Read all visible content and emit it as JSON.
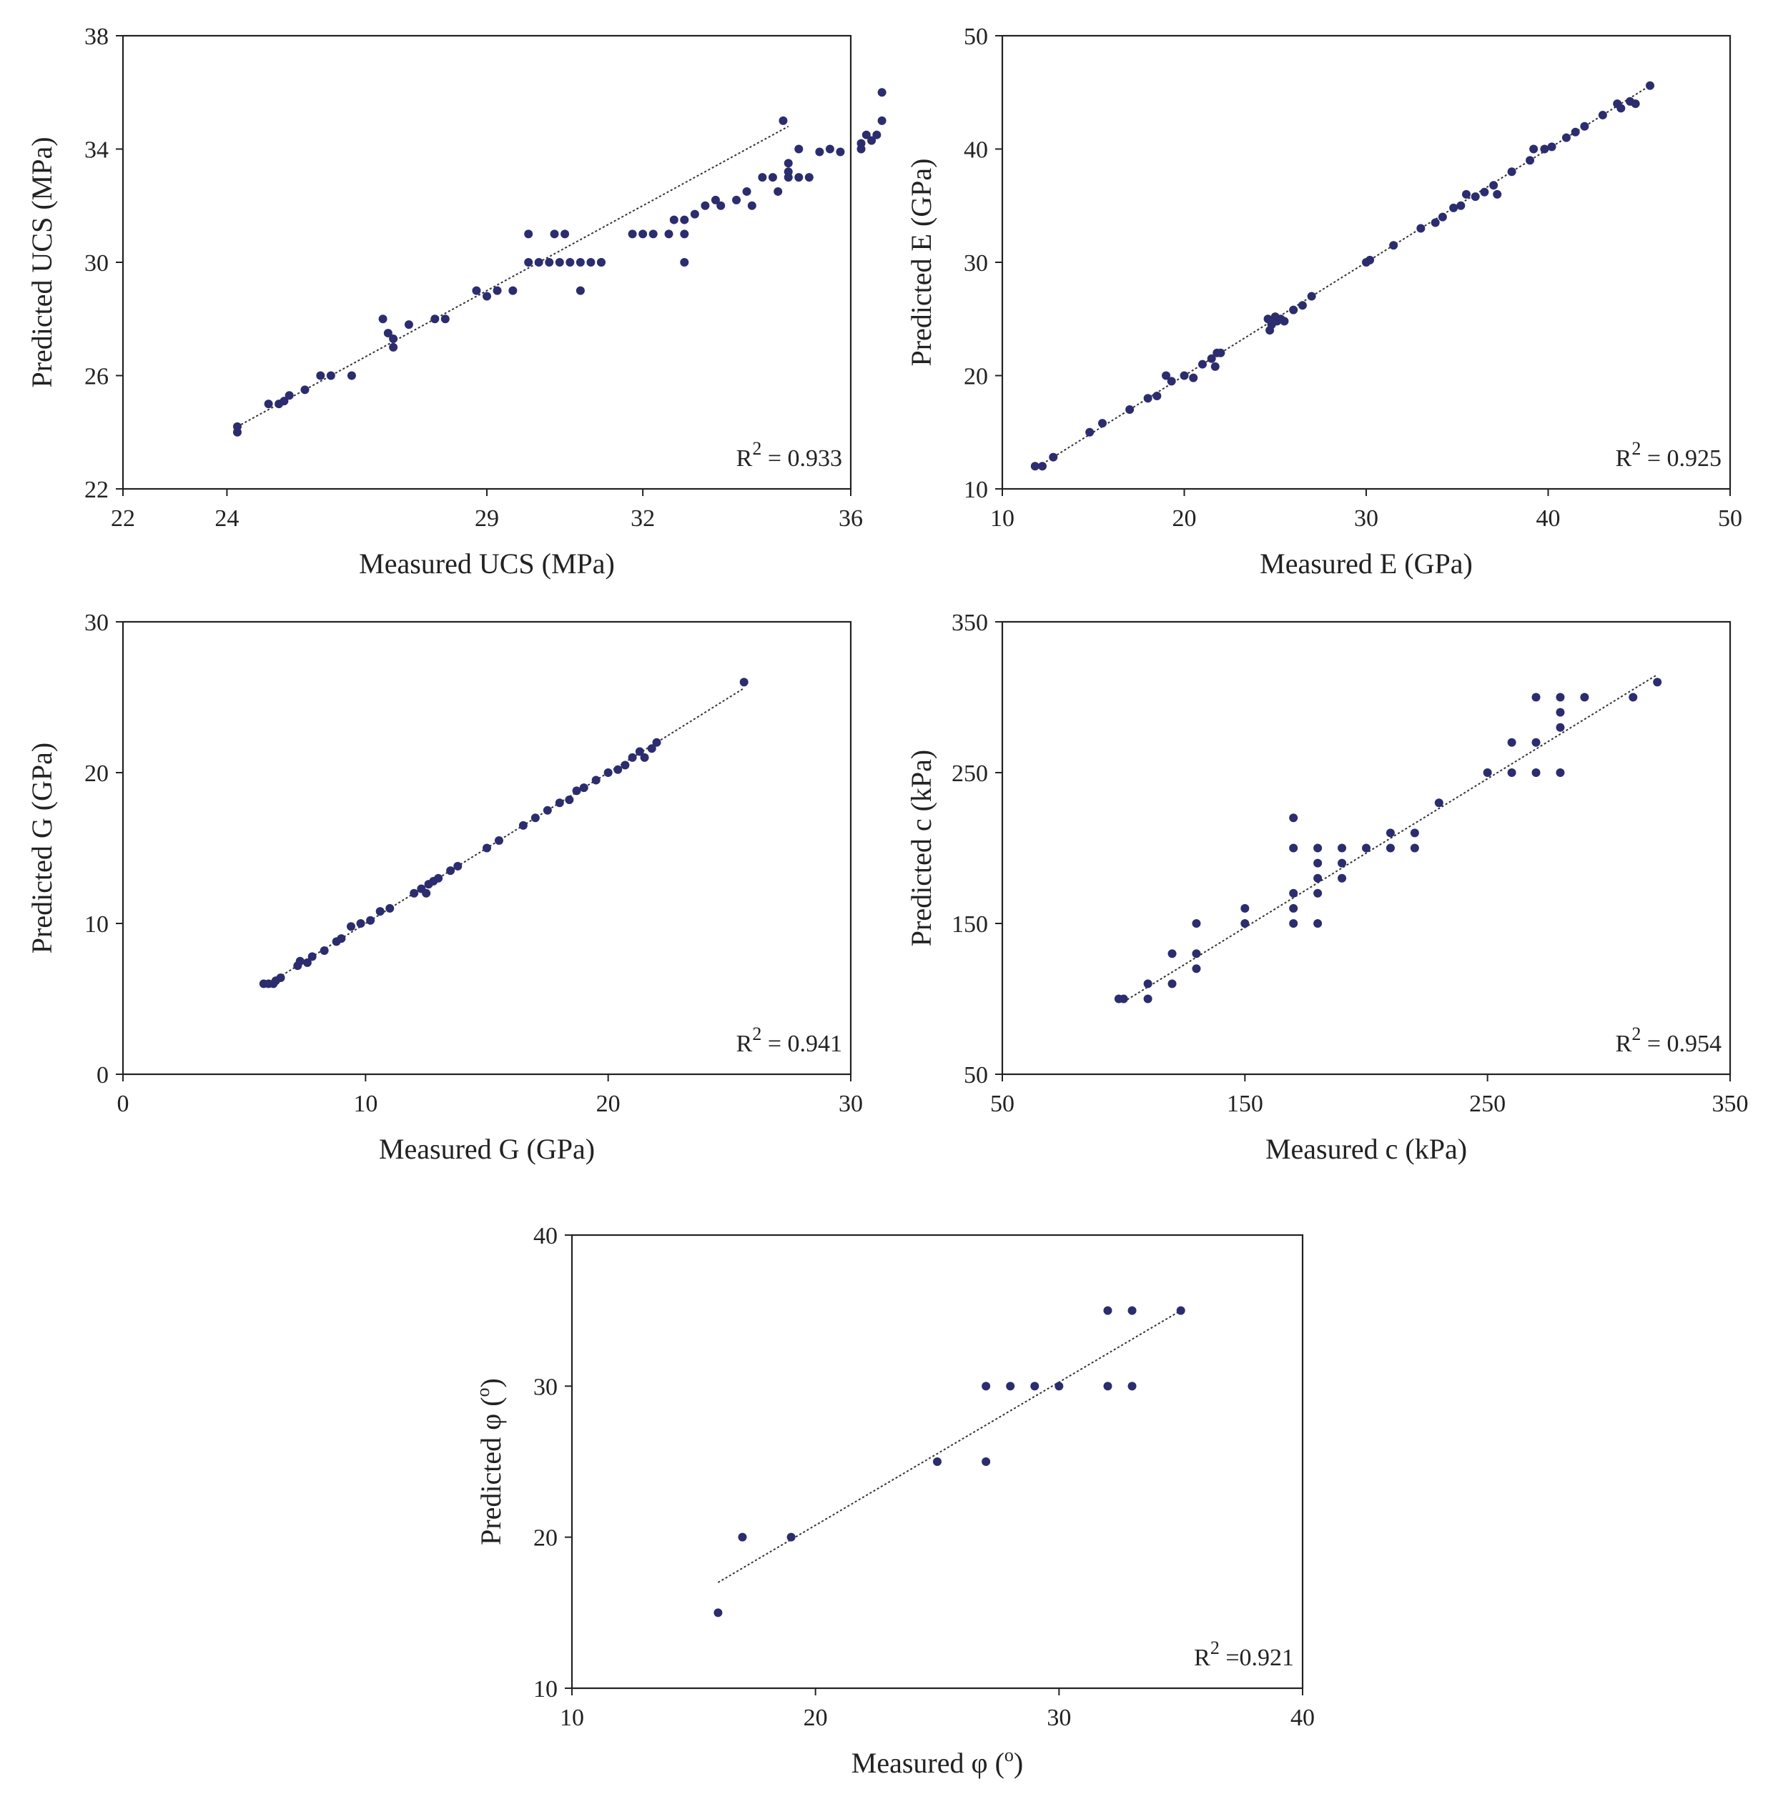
{
  "figure": {
    "title": ""
  },
  "style": {
    "marker_color": "#2b2d6e",
    "line_color": "#333333",
    "axis_color": "#222222"
  },
  "chart_data": [
    {
      "type": "scatter",
      "title": "",
      "xlabel": "Measured UCS (MPa)",
      "ylabel": "Predicted UCS (MPa)",
      "xlim": [
        22,
        36
      ],
      "ylim": [
        22,
        38
      ],
      "xticks": [
        22,
        24,
        29,
        32,
        36
      ],
      "yticks": [
        22,
        26,
        30,
        34,
        38
      ],
      "annotation": {
        "prefix": "R",
        "sup": "2",
        "text": " = 0.933"
      },
      "trendline": {
        "x": [
          24.2,
          34.8
        ],
        "y": [
          24.2,
          34.8
        ]
      },
      "points": [
        [
          24.2,
          24.0
        ],
        [
          24.2,
          24.2
        ],
        [
          24.8,
          25.0
        ],
        [
          25.0,
          25.0
        ],
        [
          25.1,
          25.1
        ],
        [
          25.2,
          25.3
        ],
        [
          25.5,
          25.5
        ],
        [
          25.8,
          26.0
        ],
        [
          26.0,
          26.0
        ],
        [
          26.4,
          26.0
        ],
        [
          27.0,
          28.0
        ],
        [
          27.1,
          27.5
        ],
        [
          27.2,
          27.3
        ],
        [
          27.2,
          27.0
        ],
        [
          27.5,
          27.8
        ],
        [
          28.0,
          28.0
        ],
        [
          28.2,
          28.0
        ],
        [
          28.8,
          29.0
        ],
        [
          29.0,
          28.8
        ],
        [
          29.2,
          29.0
        ],
        [
          29.5,
          29.0
        ],
        [
          29.8,
          31.0
        ],
        [
          29.8,
          30.0
        ],
        [
          30.0,
          30.0
        ],
        [
          30.3,
          31.0
        ],
        [
          30.5,
          31.0
        ],
        [
          30.2,
          30.0
        ],
        [
          30.4,
          30.0
        ],
        [
          30.6,
          30.0
        ],
        [
          30.8,
          29.0
        ],
        [
          30.8,
          30.0
        ],
        [
          31.0,
          30.0
        ],
        [
          31.2,
          30.0
        ],
        [
          31.2,
          30.0
        ],
        [
          31.8,
          31.0
        ],
        [
          32.0,
          31.0
        ],
        [
          32.2,
          31.0
        ],
        [
          32.5,
          31.0
        ],
        [
          32.6,
          31.5
        ],
        [
          32.8,
          31.0
        ],
        [
          32.8,
          30.0
        ],
        [
          32.8,
          31.5
        ],
        [
          33.0,
          31.7
        ],
        [
          33.2,
          32.0
        ],
        [
          33.4,
          32.2
        ],
        [
          33.5,
          32.0
        ],
        [
          33.8,
          32.2
        ],
        [
          34.0,
          32.5
        ],
        [
          34.1,
          32.0
        ],
        [
          34.3,
          33.0
        ],
        [
          34.5,
          33.0
        ],
        [
          34.6,
          32.5
        ],
        [
          34.8,
          33.2
        ],
        [
          35.0,
          33.0
        ],
        [
          34.7,
          35.0
        ],
        [
          34.8,
          33.5
        ],
        [
          35.0,
          34.0
        ],
        [
          34.8,
          33.0
        ],
        [
          35.2,
          33.0
        ],
        [
          35.4,
          33.9
        ],
        [
          35.6,
          34.0
        ],
        [
          35.8,
          33.9
        ],
        [
          36.2,
          34.2
        ],
        [
          36.3,
          34.5
        ],
        [
          36.5,
          34.5
        ],
        [
          36.6,
          35.0
        ],
        [
          36.6,
          36.0
        ],
        [
          36.4,
          34.3
        ],
        [
          36.2,
          34.0
        ]
      ]
    },
    {
      "type": "scatter",
      "title": "",
      "xlabel": "Measured E (GPa)",
      "ylabel": "Predicted E (GPa)",
      "xlim": [
        10,
        50
      ],
      "ylim": [
        10,
        50
      ],
      "xticks": [
        10,
        20,
        30,
        40,
        50
      ],
      "yticks": [
        10,
        20,
        30,
        40,
        50
      ],
      "annotation": {
        "prefix": "R",
        "sup": "2",
        "text": " = 0.925"
      },
      "trendline": {
        "x": [
          11.8,
          45.6
        ],
        "y": [
          11.8,
          45.6
        ]
      },
      "points": [
        [
          11.8,
          12.0
        ],
        [
          12.2,
          12.0
        ],
        [
          12.8,
          12.8
        ],
        [
          14.8,
          15.0
        ],
        [
          15.5,
          15.8
        ],
        [
          17.0,
          17.0
        ],
        [
          18.0,
          18.0
        ],
        [
          18.5,
          18.2
        ],
        [
          19.0,
          20.0
        ],
        [
          19.3,
          19.5
        ],
        [
          20.0,
          20.0
        ],
        [
          20.5,
          19.8
        ],
        [
          21.0,
          21.0
        ],
        [
          21.5,
          21.5
        ],
        [
          21.8,
          22.0
        ],
        [
          22.0,
          22.0
        ],
        [
          21.7,
          20.8
        ],
        [
          24.6,
          25.0
        ],
        [
          24.8,
          24.5
        ],
        [
          25.0,
          25.2
        ],
        [
          25.1,
          24.8
        ],
        [
          25.3,
          25.0
        ],
        [
          24.7,
          24.0
        ],
        [
          25.5,
          24.8
        ],
        [
          26.0,
          25.8
        ],
        [
          26.5,
          26.2
        ],
        [
          27.0,
          27.0
        ],
        [
          30.0,
          30.0
        ],
        [
          30.2,
          30.2
        ],
        [
          31.5,
          31.5
        ],
        [
          33.0,
          33.0
        ],
        [
          33.8,
          33.5
        ],
        [
          34.2,
          34.0
        ],
        [
          34.8,
          34.8
        ],
        [
          35.2,
          35.0
        ],
        [
          35.5,
          36.0
        ],
        [
          36.0,
          35.8
        ],
        [
          36.5,
          36.2
        ],
        [
          37.0,
          36.8
        ],
        [
          37.2,
          36.0
        ],
        [
          38.0,
          38.0
        ],
        [
          39.0,
          39.0
        ],
        [
          39.2,
          40.0
        ],
        [
          39.8,
          40.0
        ],
        [
          40.2,
          40.2
        ],
        [
          41.0,
          41.0
        ],
        [
          41.5,
          41.5
        ],
        [
          42.0,
          42.0
        ],
        [
          43.0,
          43.0
        ],
        [
          43.8,
          44.0
        ],
        [
          44.0,
          43.6
        ],
        [
          44.5,
          44.2
        ],
        [
          44.8,
          44.0
        ],
        [
          45.6,
          45.6
        ]
      ]
    },
    {
      "type": "scatter",
      "title": "",
      "xlabel": "Measured G (GPa)",
      "ylabel": "Predicted G (GPa)",
      "xlim": [
        0,
        30
      ],
      "ylim": [
        0,
        30
      ],
      "xticks": [
        0,
        10,
        20,
        30
      ],
      "yticks": [
        0,
        10,
        20,
        30
      ],
      "annotation": {
        "prefix": "R",
        "sup": "2",
        "text": " = 0.941"
      },
      "trendline": {
        "x": [
          5.8,
          25.6
        ],
        "y": [
          5.8,
          25.6
        ]
      },
      "points": [
        [
          5.8,
          6.0
        ],
        [
          6.0,
          6.0
        ],
        [
          6.2,
          6.0
        ],
        [
          6.3,
          6.2
        ],
        [
          6.5,
          6.4
        ],
        [
          7.2,
          7.2
        ],
        [
          7.3,
          7.5
        ],
        [
          7.6,
          7.4
        ],
        [
          7.8,
          7.8
        ],
        [
          8.3,
          8.2
        ],
        [
          8.8,
          8.8
        ],
        [
          9.0,
          9.0
        ],
        [
          9.4,
          9.8
        ],
        [
          9.8,
          10.0
        ],
        [
          10.2,
          10.2
        ],
        [
          10.6,
          10.8
        ],
        [
          11.0,
          11.0
        ],
        [
          12.0,
          12.0
        ],
        [
          12.3,
          12.3
        ],
        [
          12.5,
          12.0
        ],
        [
          12.6,
          12.6
        ],
        [
          12.8,
          12.8
        ],
        [
          13.0,
          13.0
        ],
        [
          13.5,
          13.5
        ],
        [
          13.8,
          13.8
        ],
        [
          15.0,
          15.0
        ],
        [
          15.5,
          15.5
        ],
        [
          16.5,
          16.5
        ],
        [
          17.0,
          17.0
        ],
        [
          17.5,
          17.5
        ],
        [
          18.0,
          18.0
        ],
        [
          18.4,
          18.2
        ],
        [
          18.7,
          18.8
        ],
        [
          19.0,
          19.0
        ],
        [
          19.5,
          19.5
        ],
        [
          20.0,
          20.0
        ],
        [
          20.4,
          20.2
        ],
        [
          20.7,
          20.5
        ],
        [
          21.0,
          21.0
        ],
        [
          21.3,
          21.4
        ],
        [
          21.5,
          21.0
        ],
        [
          21.8,
          21.6
        ],
        [
          22.0,
          22.0
        ],
        [
          25.6,
          26.0
        ]
      ]
    },
    {
      "type": "scatter",
      "title": "",
      "xlabel": "Measured c (kPa)",
      "ylabel": "Predicted c (kPa)",
      "xlim": [
        50,
        350
      ],
      "ylim": [
        50,
        350
      ],
      "xticks": [
        50,
        150,
        250,
        350
      ],
      "yticks": [
        50,
        150,
        250,
        350
      ],
      "annotation": {
        "prefix": "R",
        "sup": "2",
        "text": " = 0.954"
      },
      "trendline": {
        "x": [
          100,
          320
        ],
        "y": [
          98,
          315
        ]
      },
      "points": [
        [
          98,
          100
        ],
        [
          100,
          100
        ],
        [
          110,
          110
        ],
        [
          110,
          100
        ],
        [
          120,
          130
        ],
        [
          120,
          110
        ],
        [
          130,
          150
        ],
        [
          130,
          130
        ],
        [
          130,
          120
        ],
        [
          150,
          160
        ],
        [
          150,
          150
        ],
        [
          170,
          220
        ],
        [
          170,
          200
        ],
        [
          170,
          170
        ],
        [
          170,
          160
        ],
        [
          170,
          150
        ],
        [
          180,
          200
        ],
        [
          180,
          190
        ],
        [
          180,
          180
        ],
        [
          180,
          170
        ],
        [
          180,
          150
        ],
        [
          190,
          200
        ],
        [
          190,
          190
        ],
        [
          190,
          180
        ],
        [
          200,
          200
        ],
        [
          210,
          210
        ],
        [
          210,
          200
        ],
        [
          220,
          210
        ],
        [
          220,
          200
        ],
        [
          230,
          230
        ],
        [
          250,
          250
        ],
        [
          260,
          270
        ],
        [
          260,
          250
        ],
        [
          270,
          300
        ],
        [
          270,
          270
        ],
        [
          270,
          250
        ],
        [
          280,
          300
        ],
        [
          280,
          290
        ],
        [
          280,
          280
        ],
        [
          280,
          250
        ],
        [
          290,
          300
        ],
        [
          310,
          300
        ],
        [
          320,
          310
        ]
      ]
    },
    {
      "type": "scatter",
      "title": "",
      "xlabel": "Measured φ (",
      "xlabel_sup": "o",
      "xlabel_end": ")",
      "ylabel": "Predicted φ (",
      "ylabel_sup": "o",
      "ylabel_end": ")",
      "xlim": [
        10,
        40
      ],
      "ylim": [
        10,
        40
      ],
      "xticks": [
        10,
        20,
        30,
        40
      ],
      "yticks": [
        10,
        20,
        30,
        40
      ],
      "annotation": {
        "prefix": "R",
        "sup": "2",
        "text": " =0.921"
      },
      "trendline": {
        "x": [
          16,
          35
        ],
        "y": [
          17,
          35
        ]
      },
      "points": [
        [
          16,
          15
        ],
        [
          17,
          20
        ],
        [
          19,
          20
        ],
        [
          25,
          25
        ],
        [
          27,
          25
        ],
        [
          27,
          30
        ],
        [
          28,
          30
        ],
        [
          29,
          30
        ],
        [
          30,
          30
        ],
        [
          32,
          30
        ],
        [
          32,
          35
        ],
        [
          33,
          35
        ],
        [
          33,
          30
        ],
        [
          35,
          35
        ]
      ]
    }
  ]
}
